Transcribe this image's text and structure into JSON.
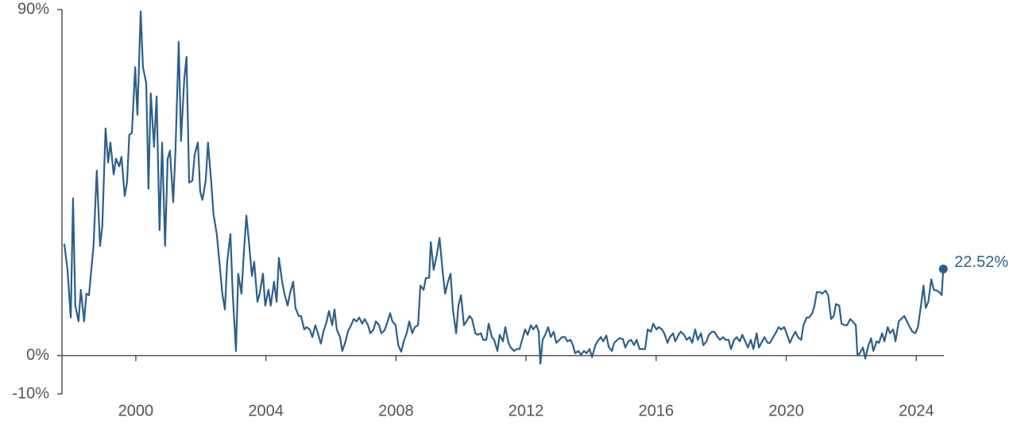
{
  "chart_data": {
    "type": "line",
    "xlim": [
      1997.73,
      2024.85
    ],
    "ylim": [
      -10,
      90
    ],
    "xticks": [
      2000,
      2004,
      2008,
      2012,
      2016,
      2020,
      2024
    ],
    "yticks": [
      {
        "value": -10,
        "label": "-10%"
      },
      {
        "value": 0,
        "label": "0%"
      },
      {
        "value": 90,
        "label": "90%"
      }
    ],
    "end_label": "22.52%",
    "x": [
      1997.8,
      1997.9,
      1998.0,
      1998.07,
      1998.14,
      1998.24,
      1998.31,
      1998.41,
      1998.48,
      1998.56,
      1998.7,
      1998.8,
      1998.9,
      1998.97,
      1999.07,
      1999.15,
      1999.22,
      1999.32,
      1999.39,
      1999.49,
      1999.56,
      1999.66,
      1999.73,
      1999.8,
      1999.88,
      1999.98,
      2000.05,
      2000.15,
      2000.22,
      2000.32,
      2000.39,
      2000.46,
      2000.56,
      2000.64,
      2000.73,
      2000.81,
      2000.9,
      2000.98,
      2001.05,
      2001.15,
      2001.22,
      2001.32,
      2001.39,
      2001.49,
      2001.56,
      2001.64,
      2001.74,
      2001.81,
      2001.91,
      2001.98,
      2002.05,
      2002.15,
      2002.22,
      2002.32,
      2002.39,
      2002.49,
      2002.57,
      2002.66,
      2002.74,
      2002.81,
      2002.91,
      2002.98,
      2003.08,
      2003.15,
      2003.25,
      2003.32,
      2003.4,
      2003.49,
      2003.57,
      2003.64,
      2003.74,
      2003.81,
      2003.91,
      2003.98,
      2004.08,
      2004.15,
      2004.25,
      2004.33,
      2004.4,
      2004.5,
      2004.57,
      2004.67,
      2004.74,
      2004.84,
      2004.91,
      2005.01,
      2005.08,
      2005.18,
      2005.25,
      2005.35,
      2005.43,
      2005.52,
      2005.6,
      2005.69,
      2005.77,
      2005.87,
      2005.94,
      2006.04,
      2006.11,
      2006.18,
      2006.28,
      2006.35,
      2006.45,
      2006.52,
      2006.62,
      2006.7,
      2006.79,
      2006.87,
      2006.96,
      2007.04,
      2007.14,
      2007.21,
      2007.31,
      2007.38,
      2007.48,
      2007.55,
      2007.65,
      2007.72,
      2007.82,
      2007.89,
      2007.99,
      2008.07,
      2008.16,
      2008.24,
      2008.33,
      2008.41,
      2008.5,
      2008.58,
      2008.68,
      2008.75,
      2008.85,
      2008.92,
      2009.02,
      2009.07,
      2009.16,
      2009.26,
      2009.34,
      2009.43,
      2009.51,
      2009.6,
      2009.68,
      2009.75,
      2009.85,
      2009.92,
      2010.0,
      2010.09,
      2010.17,
      2010.26,
      2010.34,
      2010.44,
      2010.51,
      2010.61,
      2010.68,
      2010.78,
      2010.85,
      2010.95,
      2011.02,
      2011.12,
      2011.19,
      2011.29,
      2011.36,
      2011.46,
      2011.53,
      2011.63,
      2011.71,
      2011.8,
      2011.88,
      2011.97,
      2012.05,
      2012.15,
      2012.22,
      2012.32,
      2012.39,
      2012.44,
      2012.51,
      2012.59,
      2012.68,
      2012.76,
      2012.85,
      2012.93,
      2013.03,
      2013.1,
      2013.2,
      2013.27,
      2013.37,
      2013.44,
      2013.51,
      2013.61,
      2013.69,
      2013.78,
      2013.86,
      2013.95,
      2014.03,
      2014.13,
      2014.2,
      2014.3,
      2014.37,
      2014.47,
      2014.54,
      2014.64,
      2014.71,
      2014.81,
      2014.88,
      2014.98,
      2015.05,
      2015.15,
      2015.23,
      2015.32,
      2015.4,
      2015.49,
      2015.57,
      2015.66,
      2015.74,
      2015.84,
      2015.91,
      2016.01,
      2016.08,
      2016.18,
      2016.25,
      2016.35,
      2016.42,
      2016.52,
      2016.59,
      2016.69,
      2016.76,
      2016.86,
      2016.94,
      2017.03,
      2017.11,
      2017.2,
      2017.28,
      2017.38,
      2017.45,
      2017.55,
      2017.62,
      2017.72,
      2017.79,
      2017.89,
      2017.96,
      2018.06,
      2018.13,
      2018.23,
      2018.3,
      2018.4,
      2018.48,
      2018.57,
      2018.65,
      2018.74,
      2018.82,
      2018.91,
      2018.99,
      2019.09,
      2019.16,
      2019.26,
      2019.33,
      2019.43,
      2019.5,
      2019.6,
      2019.67,
      2019.77,
      2019.84,
      2019.94,
      2020.01,
      2020.11,
      2020.19,
      2020.28,
      2020.36,
      2020.46,
      2020.53,
      2020.63,
      2020.7,
      2020.8,
      2020.87,
      2020.94,
      2021.04,
      2021.11,
      2021.21,
      2021.29,
      2021.38,
      2021.46,
      2021.53,
      2021.63,
      2021.7,
      2021.8,
      2021.87,
      2021.97,
      2022.04,
      2022.14,
      2022.19,
      2022.26,
      2022.36,
      2022.43,
      2022.53,
      2022.61,
      2022.68,
      2022.78,
      2022.85,
      2022.95,
      2023.02,
      2023.12,
      2023.19,
      2023.29,
      2023.36,
      2023.46,
      2023.53,
      2023.63,
      2023.71,
      2023.8,
      2023.88,
      2023.97,
      2024.05,
      2024.15,
      2024.22,
      2024.29,
      2024.37,
      2024.46,
      2024.54,
      2024.63,
      2024.71,
      2024.78,
      2024.83
    ],
    "series": [
      {
        "color": "#2d5f8b",
        "values": [
          29.1,
          22.3,
          9.9,
          40.9,
          13.0,
          8.9,
          17.1,
          8.9,
          16.1,
          15.7,
          28.5,
          48.1,
          28.5,
          33.7,
          59.1,
          50.2,
          55.4,
          47.1,
          51.2,
          49.2,
          51.7,
          41.5,
          45.0,
          57.4,
          57.9,
          75.0,
          62.6,
          89.5,
          75.0,
          70.9,
          43.4,
          68.2,
          54.3,
          67.4,
          32.6,
          55.4,
          28.5,
          51.2,
          53.3,
          39.9,
          53.3,
          81.6,
          55.8,
          71.9,
          77.7,
          45.0,
          45.5,
          52.3,
          55.4,
          42.6,
          40.5,
          45.5,
          55.4,
          45.0,
          36.8,
          31.6,
          24.4,
          16.1,
          12.0,
          24.4,
          31.6,
          16.1,
          1.2,
          21.3,
          16.1,
          26.4,
          36.4,
          28.5,
          20.7,
          24.4,
          14.0,
          16.1,
          21.3,
          13.0,
          17.1,
          13.0,
          19.2,
          14.0,
          25.4,
          19.2,
          16.1,
          13.0,
          16.1,
          19.2,
          12.4,
          10.3,
          10.3,
          6.8,
          7.4,
          6.8,
          4.8,
          7.9,
          5.8,
          3.1,
          6.2,
          8.9,
          11.6,
          7.9,
          12.0,
          6.8,
          4.8,
          1.2,
          3.7,
          6.2,
          7.9,
          9.5,
          8.9,
          9.9,
          8.3,
          9.5,
          7.9,
          5.8,
          6.8,
          8.9,
          7.9,
          5.8,
          6.6,
          8.3,
          11.0,
          8.9,
          7.9,
          2.7,
          1.0,
          3.7,
          5.8,
          8.9,
          5.8,
          7.4,
          7.9,
          18.2,
          17.1,
          20.2,
          20.2,
          29.5,
          22.3,
          26.4,
          30.6,
          22.3,
          16.1,
          19.2,
          21.3,
          12.0,
          5.8,
          13.0,
          15.7,
          7.9,
          8.9,
          10.3,
          9.5,
          5.8,
          5.4,
          5.8,
          4.1,
          4.1,
          8.3,
          4.8,
          4.1,
          1.2,
          5.4,
          3.7,
          7.4,
          3.3,
          2.1,
          1.2,
          1.7,
          1.7,
          4.1,
          6.8,
          5.4,
          7.9,
          6.8,
          7.9,
          6.2,
          -2.1,
          4.1,
          5.4,
          7.4,
          4.8,
          6.2,
          3.3,
          4.1,
          4.8,
          4.8,
          3.7,
          4.1,
          2.7,
          0.6,
          1.2,
          0.2,
          1.2,
          0.6,
          1.7,
          -0.4,
          2.7,
          3.7,
          4.8,
          3.7,
          5.2,
          2.3,
          1.2,
          3.3,
          4.1,
          4.5,
          4.3,
          2.1,
          3.7,
          4.1,
          2.7,
          4.1,
          1.7,
          1.7,
          1.7,
          6.8,
          6.2,
          8.3,
          6.8,
          7.4,
          6.8,
          5.8,
          3.3,
          4.8,
          5.8,
          3.7,
          5.4,
          6.2,
          5.4,
          4.1,
          4.8,
          3.3,
          6.8,
          4.1,
          5.8,
          2.7,
          3.7,
          5.4,
          6.2,
          6.2,
          4.8,
          4.1,
          4.8,
          4.1,
          4.1,
          1.7,
          4.1,
          4.8,
          3.7,
          5.4,
          3.7,
          2.1,
          4.1,
          1.7,
          5.8,
          2.1,
          3.7,
          4.8,
          3.3,
          3.3,
          4.8,
          5.8,
          7.4,
          6.8,
          7.4,
          5.8,
          3.3,
          4.8,
          6.2,
          4.8,
          4.1,
          7.9,
          9.9,
          9.9,
          11.0,
          13.0,
          16.5,
          16.5,
          16.1,
          16.9,
          15.7,
          9.5,
          10.3,
          13.4,
          13.0,
          8.3,
          7.9,
          7.9,
          9.5,
          8.9,
          7.9,
          0,
          0.6,
          2.1,
          -0.8,
          2.7,
          4.5,
          1.2,
          3.7,
          3.3,
          5.8,
          3.7,
          7.4,
          5.8,
          6.8,
          3.7,
          8.9,
          9.5,
          10.3,
          8.9,
          7.4,
          6.2,
          5.8,
          7.4,
          13.4,
          18.2,
          12.4,
          14.0,
          19.8,
          17.1,
          16.9,
          16.5,
          15.7,
          22.52
        ]
      }
    ]
  }
}
